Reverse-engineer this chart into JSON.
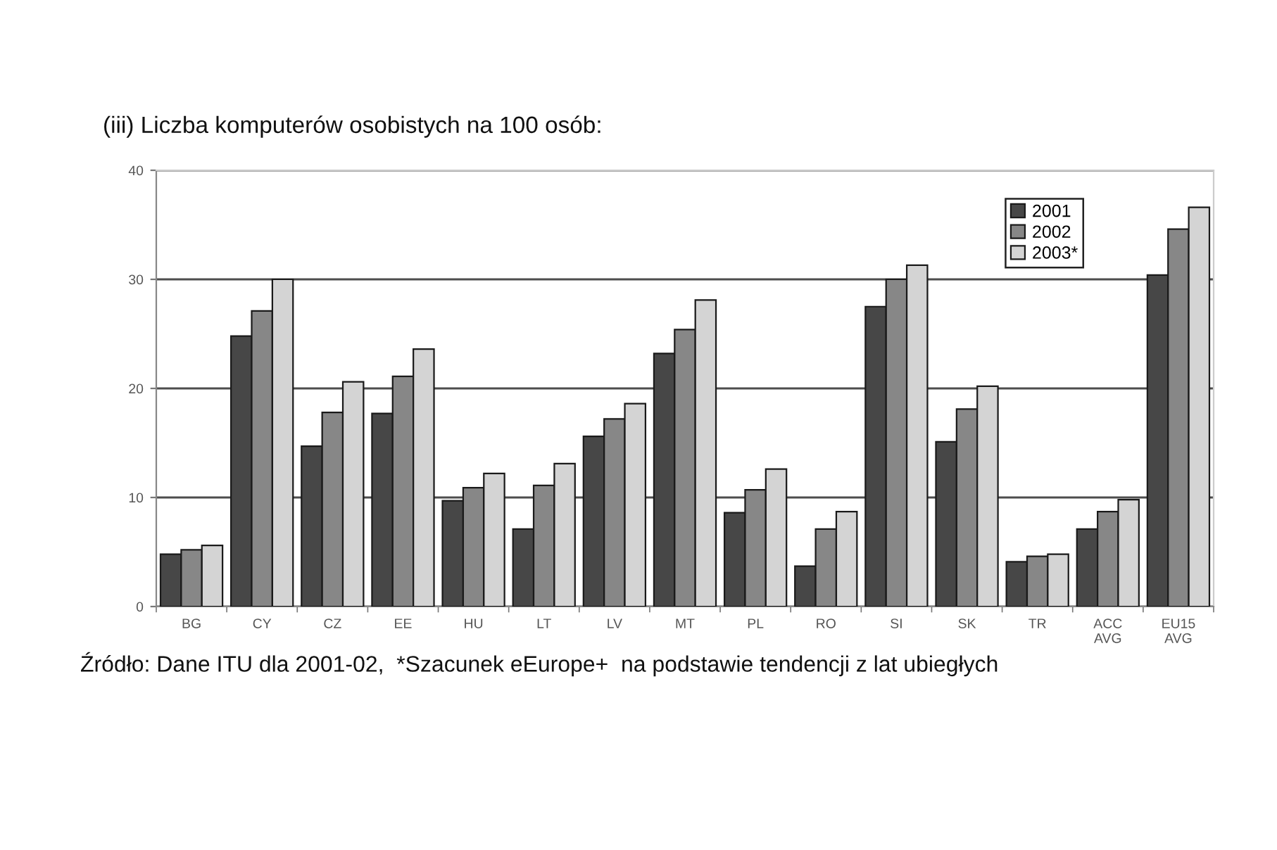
{
  "chart_data": {
    "type": "bar",
    "title": "(iii) Liczba komputerów osobistych na 100 osób:",
    "categories": [
      "BG",
      "CY",
      "CZ",
      "EE",
      "HU",
      "LT",
      "LV",
      "MT",
      "PL",
      "RO",
      "SI",
      "SK",
      "TR",
      "ACC\nAVG",
      "EU15\nAVG"
    ],
    "series": [
      {
        "name": "2001",
        "color": "#474747",
        "values": [
          4.8,
          24.8,
          14.7,
          17.7,
          9.7,
          7.1,
          15.6,
          23.2,
          8.6,
          3.7,
          27.5,
          15.1,
          4.1,
          7.1,
          30.4
        ]
      },
      {
        "name": "2002",
        "color": "#878787",
        "values": [
          5.2,
          27.1,
          17.8,
          21.1,
          10.9,
          11.1,
          17.2,
          25.4,
          10.7,
          7.1,
          30.0,
          18.1,
          4.6,
          8.7,
          34.6
        ]
      },
      {
        "name": "2003*",
        "color": "#d4d4d4",
        "values": [
          5.6,
          30.0,
          20.6,
          23.6,
          12.2,
          13.1,
          18.6,
          28.1,
          12.6,
          8.7,
          31.3,
          20.2,
          4.8,
          9.8,
          36.6
        ]
      }
    ],
    "ylim": [
      0,
      40
    ],
    "yticks": [
      0,
      10,
      20,
      30,
      40
    ],
    "grid": "y",
    "legend": "top right",
    "annotations": [
      "Źródło: Dane ITU dla 2001-02,  *Szacunek eEurope+  na podstawie tendencji z lat ubiegłych"
    ]
  }
}
